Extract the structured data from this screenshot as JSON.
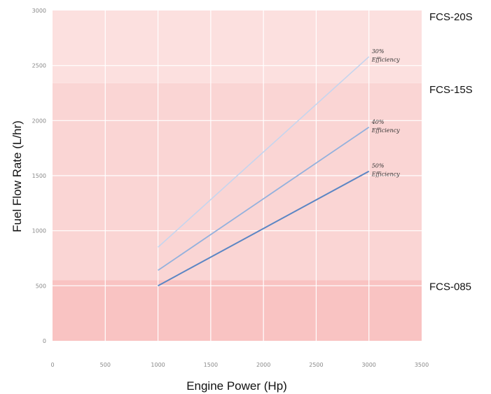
{
  "chart_data": {
    "type": "line",
    "xlabel": "Engine Power (Hp)",
    "ylabel": "Fuel Flow Rate (L/hr)",
    "xlim": [
      0,
      3500
    ],
    "ylim": [
      0,
      3000
    ],
    "xticks": [
      "0",
      "500",
      "1000",
      "1500",
      "2000",
      "2500",
      "3000",
      "3500"
    ],
    "yticks": [
      "0",
      "500",
      "1000",
      "1500",
      "2000",
      "2500",
      "3000"
    ],
    "grid": true,
    "bands": [
      {
        "label": "FCS-085",
        "y0": 0,
        "y1": 550,
        "color": "#f9c3c2"
      },
      {
        "label": "FCS-15S",
        "y0": 550,
        "y1": 2340,
        "color": "#fad5d4"
      },
      {
        "label": "FCS-20S",
        "y0": 2340,
        "y1": 3000,
        "color": "#fce0df"
      }
    ],
    "series": [
      {
        "name": "30% Efficiency",
        "x": [
          1000,
          3000
        ],
        "y": [
          850,
          2580
        ],
        "color": "#c5d5ee",
        "width": 1.6
      },
      {
        "name": "40% Efficiency",
        "x": [
          1000,
          3000
        ],
        "y": [
          640,
          1940
        ],
        "color": "#93b1dd",
        "width": 1.8
      },
      {
        "name": "50% Efficiency",
        "x": [
          1000,
          3000
        ],
        "y": [
          500,
          1540
        ],
        "color": "#5b86c4",
        "width": 2
      }
    ]
  }
}
